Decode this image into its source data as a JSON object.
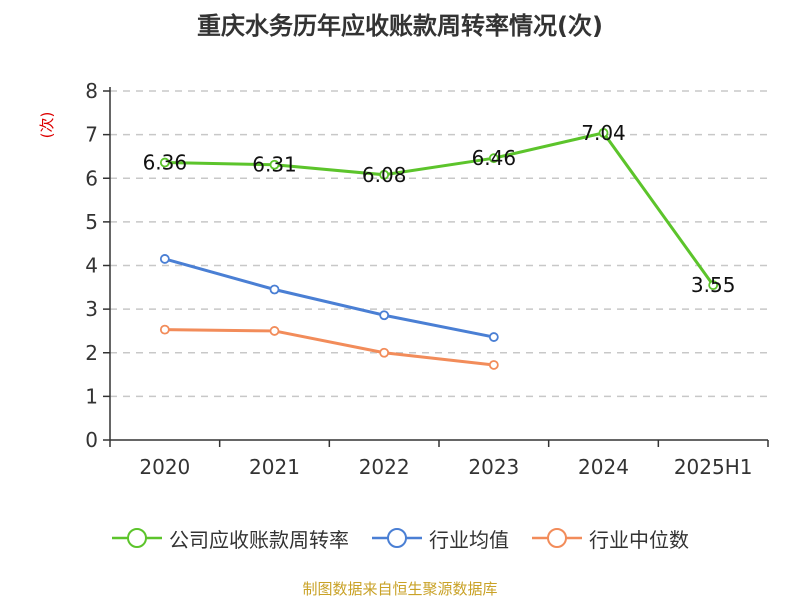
{
  "chart_data": {
    "type": "line",
    "title": "重庆水务历年应收账款周转率情况(次)",
    "ylabel": "(次)",
    "xlabel": "",
    "categories": [
      "2020",
      "2021",
      "2022",
      "2023",
      "2024",
      "2025H1"
    ],
    "ylim": [
      0,
      8
    ],
    "yticks": [
      0,
      1,
      2,
      3,
      4,
      5,
      6,
      7,
      8
    ],
    "grid": true,
    "legend_position": "bottom",
    "series": [
      {
        "name": "公司应收账款周转率",
        "color": "#5cc42b",
        "values": [
          6.36,
          6.31,
          6.08,
          6.46,
          7.04,
          3.55
        ],
        "labels": [
          "6.36",
          "6.31",
          "6.08",
          "6.46",
          "7.04",
          "3.55"
        ]
      },
      {
        "name": "行业均值",
        "color": "#4a7fd4",
        "values": [
          4.15,
          3.45,
          2.86,
          2.36,
          null,
          null
        ]
      },
      {
        "name": "行业中位数",
        "color": "#f28c5a",
        "values": [
          2.53,
          2.5,
          2.0,
          1.72,
          null,
          null
        ]
      }
    ]
  },
  "footer": {
    "source": "制图数据来自恒生聚源数据库"
  }
}
